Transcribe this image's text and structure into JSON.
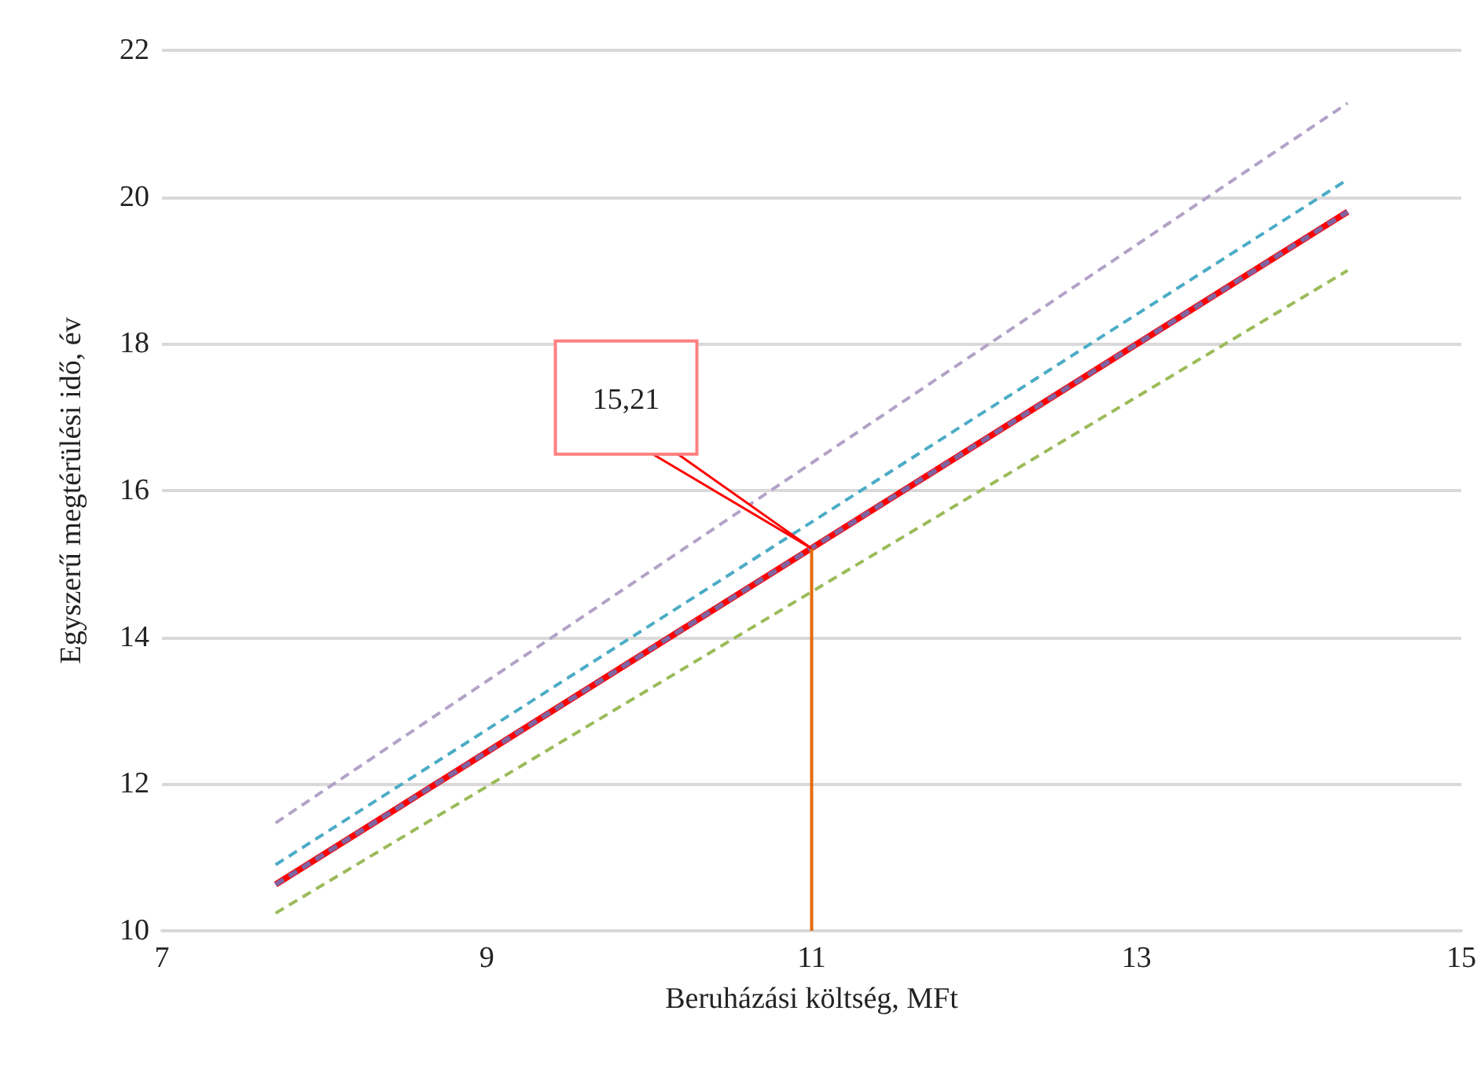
{
  "chart_data": {
    "type": "line",
    "xlabel": "Beruházási költség, MFt",
    "ylabel": "Egyszerű megtérülési idő, év",
    "xlim": [
      7,
      15
    ],
    "xticks": [
      7,
      9,
      11,
      13,
      15
    ],
    "ylim": [
      10,
      22
    ],
    "yticks": [
      10,
      12,
      14,
      16,
      18,
      20,
      22
    ],
    "grid": "y",
    "marker": "none",
    "x": [
      7.7,
      14.3
    ],
    "series": [
      {
        "color": "#b3a2c7",
        "line_style": "dashed",
        "values": [
          11.47,
          21.28
        ]
      },
      {
        "color": "#4bacc6",
        "line_style": "dashed",
        "values": [
          10.9,
          20.24
        ]
      },
      {
        "color": "#ff0000",
        "line_style": "solid",
        "values": [
          10.63,
          19.8
        ]
      },
      {
        "color": "#8064a2",
        "line_style": "dashed",
        "values": [
          10.63,
          19.8
        ]
      },
      {
        "color": "#9bbb59",
        "line_style": "dashed",
        "values": [
          10.24,
          19.0
        ]
      },
      {
        "color": "#e46c0a",
        "line_style": "solid",
        "x": [
          11,
          11
        ],
        "values": [
          10,
          15.21
        ]
      }
    ],
    "annotations": [
      "15,21"
    ]
  }
}
